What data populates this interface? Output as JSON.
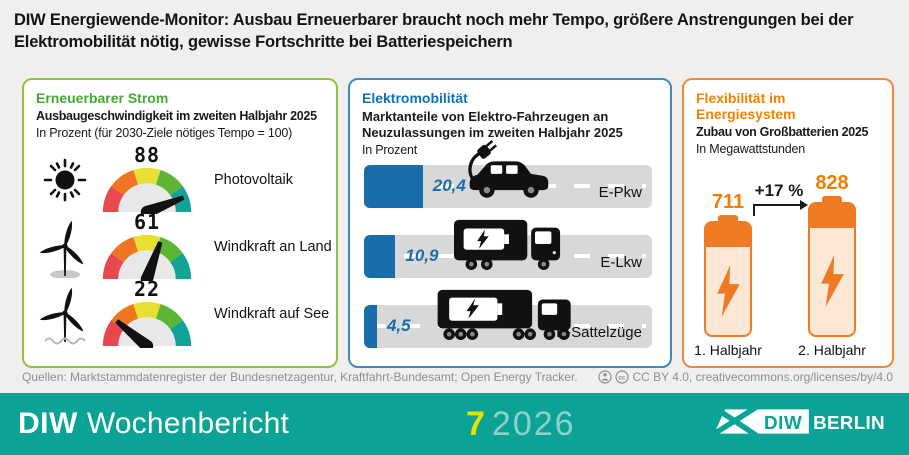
{
  "title": "DIW Energiewende-Monitor: Ausbau Erneuerbarer braucht noch mehr Tempo, größere Anstrengungen bei der Elektromobilität nötig, gewisse Fortschritte bei Batteriespeichern",
  "renewables": {
    "heading": "Erneuerbarer Strom",
    "subtitle": "Ausbaugeschwindigkeit im zweiten Halbjahr 2025",
    "note": "In Prozent (für 2030-Ziele nötiges Tempo = 100)",
    "rows": [
      {
        "icon": "sun-icon",
        "value": 88,
        "label": "Photovoltaik"
      },
      {
        "icon": "wind-turbine-onshore-icon",
        "value": 61,
        "label": "Windkraft an Land"
      },
      {
        "icon": "wind-turbine-offshore-icon",
        "value": 22,
        "label": "Windkraft auf See"
      }
    ]
  },
  "emobility": {
    "heading": "Elektromobilität",
    "subtitle": "Marktanteile von Elektro-Fahrzeugen an Neuzulassungen im zweiten Halbjahr 2025",
    "note": "In Prozent",
    "rows": [
      {
        "icon": "e-car-plug-icon",
        "value": 20.4,
        "value_label": "20,4",
        "label": "E-Pkw"
      },
      {
        "icon": "e-box-truck-icon",
        "value": 10.9,
        "value_label": "10,9",
        "label": "E-Lkw"
      },
      {
        "icon": "e-semi-truck-icon",
        "value": 4.5,
        "value_label": "4,5",
        "label": "E-Sattelzüge"
      }
    ]
  },
  "flexibility": {
    "heading": "Flexibilität im Energiesystem",
    "subtitle": "Zubau von Großbatterien 2025",
    "note": "In Megawattstunden",
    "change_label": "+17 %",
    "batteries": [
      {
        "icon": "battery-icon",
        "value": 711,
        "label": "1. Halbjahr"
      },
      {
        "icon": "battery-icon",
        "value": 828,
        "label": "2. Halbjahr"
      }
    ]
  },
  "sources": "Quellen: Marktstammdatenregister der Bundesnetzagentur, Kraftfahrt-Bundesamt; Open Energy Tracker.",
  "license": {
    "text": "CC BY 4.0, creativecommons.org/licenses/by/4.0",
    "icons": [
      "cc-person-icon",
      "cc-icon"
    ]
  },
  "footer": {
    "brand_bold": "DIW",
    "brand_rest": "Wochenbericht",
    "issue": "7",
    "year": "2026",
    "logo_diw": "DIW",
    "logo_berlin": "BERLIN"
  },
  "colors": {
    "accent_green": "#44aa31",
    "accent_blue": "#0d72bb",
    "accent_orange": "#f28200",
    "band_teal": "#0aa396",
    "bar_blue": "#1a6dab",
    "battery_orange": "#ee7a24",
    "issue_yellow": "#e6e300",
    "gauge_segments": [
      "#e8494f",
      "#ee7623",
      "#e7df33",
      "#5db535",
      "#12a296"
    ]
  },
  "chart_data": [
    {
      "type": "bar",
      "variant": "half-donut-gauges",
      "title": "Ausbaugeschwindigkeit im zweiten Halbjahr 2025",
      "unit": "In Prozent (für 2030-Ziele nötiges Tempo = 100)",
      "categories": [
        "Photovoltaik",
        "Windkraft an Land",
        "Windkraft auf See"
      ],
      "values": [
        88,
        61,
        22
      ],
      "range": [
        0,
        100
      ],
      "gauge_colors": [
        "#e8494f",
        "#ee7623",
        "#e7df33",
        "#5db535",
        "#12a296"
      ]
    },
    {
      "type": "bar",
      "variant": "horizontal-road-pictogram",
      "title": "Marktanteile von Elektro-Fahrzeugen an Neuzulassungen im zweiten Halbjahr 2025",
      "unit": "In Prozent",
      "categories": [
        "E-Pkw",
        "E-Lkw",
        "E-Sattelzüge"
      ],
      "values": [
        20.4,
        10.9,
        4.5
      ],
      "value_labels": [
        "20,4",
        "10,9",
        "4,5"
      ],
      "xlim": [
        0,
        100
      ]
    },
    {
      "type": "bar",
      "variant": "battery-pictogram",
      "title": "Zubau von Großbatterien 2025",
      "unit": "In Megawattstunden",
      "categories": [
        "1. Halbjahr",
        "2. Halbjahr"
      ],
      "values": [
        711,
        828
      ],
      "annotation": "+17 %"
    }
  ]
}
